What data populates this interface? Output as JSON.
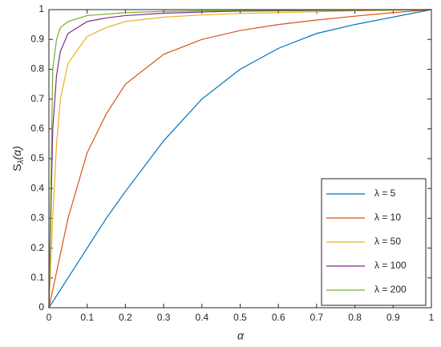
{
  "chart_data": {
    "type": "line",
    "xlabel": "α",
    "ylabel": {
      "base": "S",
      "subscript": "λ",
      "arg": "(α)"
    },
    "x": [
      0,
      0.01,
      0.02,
      0.03,
      0.05,
      0.1,
      0.15,
      0.2,
      0.3,
      0.4,
      0.5,
      0.6,
      0.7,
      0.8,
      0.9,
      1
    ],
    "series": [
      {
        "name": "λ = 5",
        "color": "#0072BD",
        "values": [
          0,
          0.02,
          0.04,
          0.06,
          0.1,
          0.2,
          0.3,
          0.39,
          0.56,
          0.7,
          0.8,
          0.87,
          0.92,
          0.95,
          0.975,
          1
        ]
      },
      {
        "name": "λ = 10",
        "color": "#D95319",
        "values": [
          0,
          0.06,
          0.12,
          0.18,
          0.3,
          0.52,
          0.65,
          0.75,
          0.85,
          0.9,
          0.93,
          0.95,
          0.965,
          0.978,
          0.99,
          1
        ]
      },
      {
        "name": "λ = 50",
        "color": "#EDB120",
        "values": [
          0,
          0.3,
          0.55,
          0.7,
          0.82,
          0.91,
          0.94,
          0.96,
          0.975,
          0.982,
          0.987,
          0.99,
          0.993,
          0.996,
          0.998,
          1
        ]
      },
      {
        "name": "λ = 100",
        "color": "#7E2F8E",
        "values": [
          0,
          0.6,
          0.78,
          0.86,
          0.92,
          0.96,
          0.972,
          0.98,
          0.988,
          0.992,
          0.995,
          0.996,
          0.997,
          0.998,
          0.999,
          1
        ]
      },
      {
        "name": "λ = 200",
        "color": "#77AC30",
        "values": [
          0,
          0.8,
          0.9,
          0.94,
          0.96,
          0.98,
          0.985,
          0.99,
          0.994,
          0.996,
          0.997,
          0.998,
          0.998,
          0.999,
          0.999,
          1
        ]
      }
    ],
    "xlim": [
      0,
      1
    ],
    "ylim": [
      0,
      1
    ],
    "xticks": [
      0,
      0.1,
      0.2,
      0.3,
      0.4,
      0.5,
      0.6,
      0.7,
      0.8,
      0.9,
      1
    ],
    "yticks": [
      0,
      0.1,
      0.2,
      0.3,
      0.4,
      0.5,
      0.6,
      0.7,
      0.8,
      0.9,
      1
    ],
    "grid": false,
    "legend": "southeast"
  }
}
